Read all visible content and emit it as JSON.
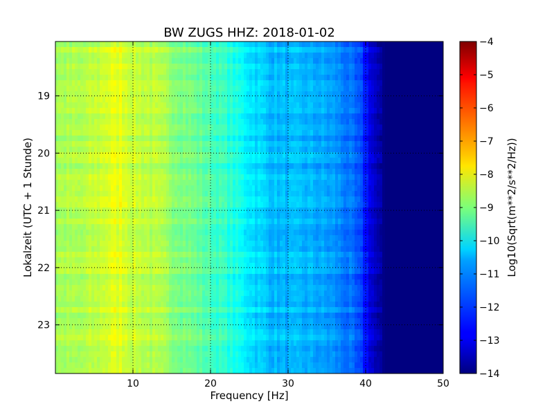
{
  "chart_data": {
    "type": "heatmap",
    "title": "BW ZUGS HHZ: 2018-01-02",
    "xlabel": "Frequency [Hz]",
    "ylabel": "Lokalzeit (UTC + 1 Stunde)",
    "xlim": [
      0,
      50
    ],
    "ylim": [
      18.05,
      23.85
    ],
    "y_inverted": true,
    "x_ticks": [
      "10",
      "20",
      "30",
      "40",
      "50"
    ],
    "x_tick_values": [
      10,
      20,
      30,
      40,
      50
    ],
    "y_ticks": [
      "19",
      "20",
      "21",
      "22",
      "23"
    ],
    "y_tick_values": [
      19,
      20,
      21,
      22,
      23
    ],
    "grid": true,
    "colormap": "jet",
    "colorbar": {
      "label": "Log10(Sqrt(m**2/s**2/Hz))",
      "range": [
        -14,
        -4
      ],
      "ticks": [
        "−4",
        "−5",
        "−6",
        "−7",
        "−8",
        "−9",
        "−10",
        "−11",
        "−12",
        "−13",
        "−14"
      ],
      "tick_values": [
        -4,
        -5,
        -6,
        -7,
        -8,
        -9,
        -10,
        -11,
        -12,
        -13,
        -14
      ]
    },
    "spectrum_profile": {
      "frequency_hz": [
        0,
        3,
        5,
        7,
        8.5,
        10,
        12,
        15,
        18,
        20,
        22,
        24,
        26,
        28,
        30,
        32,
        34,
        36,
        38,
        39.5,
        40.5,
        41.5,
        42.5,
        45,
        50
      ],
      "log_amplitude": [
        -8.6,
        -8.6,
        -8.4,
        -8.1,
        -8.0,
        -8.3,
        -8.4,
        -8.8,
        -9.2,
        -9.5,
        -9.8,
        -10.2,
        -10.6,
        -10.9,
        -11.0,
        -11.0,
        -11.1,
        -11.3,
        -11.7,
        -12.2,
        -12.9,
        -13.6,
        -14.0,
        -14.0,
        -14.0
      ]
    }
  }
}
